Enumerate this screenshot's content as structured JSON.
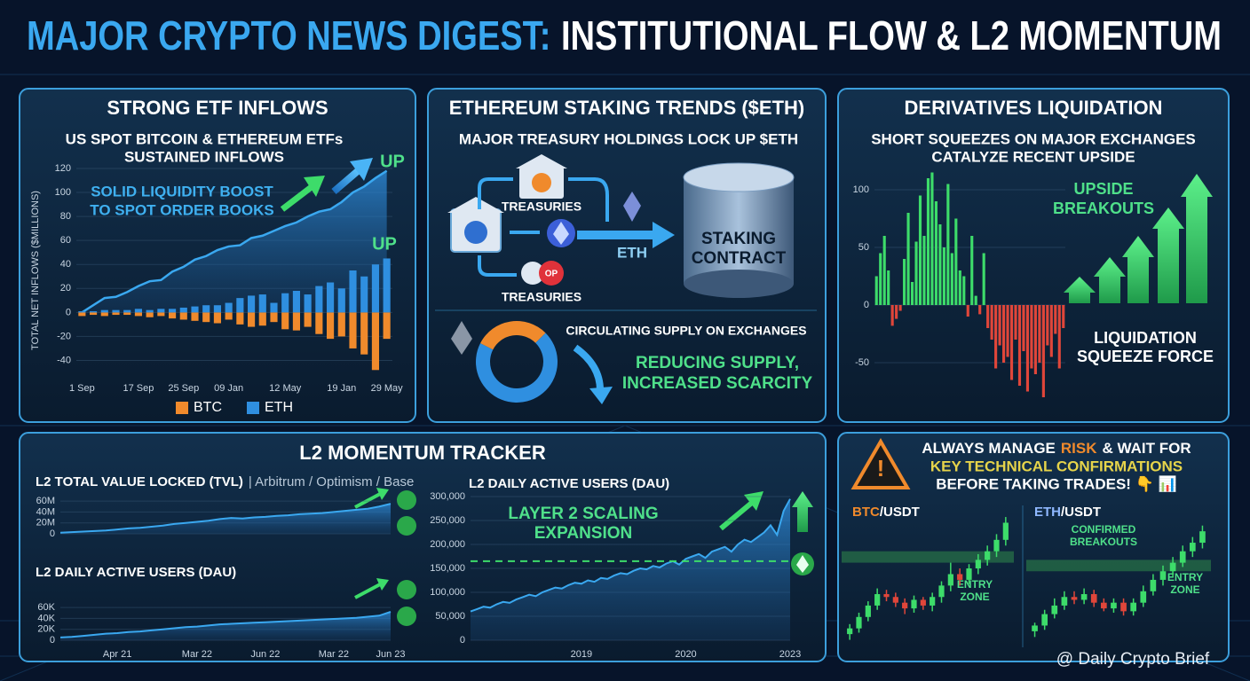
{
  "header": {
    "title_lead": "MAJOR CRYPTO NEWS DIGEST:",
    "title_rest": "INSTITUTIONAL FLOW & L2 MOMENTUM"
  },
  "panels": {
    "etf": {
      "heading": "STRONG ETF INFLOWS",
      "subtitle": [
        "US SPOT BITCOIN & ETHEREUM ETFs",
        "SUSTAINED INFLOWS"
      ],
      "note": [
        "SOLID LIQUIDITY BOOST",
        "TO SPOT ORDER BOOKS"
      ],
      "up": [
        "UP",
        "UP"
      ]
    },
    "staking": {
      "heading": "ETHEREUM STAKING TRENDS ($ETH)",
      "subtitle": "MAJOR TREASURY HOLDINGS LOCK UP $ETH",
      "treasuries": [
        "TREASURIES",
        "TREASURIES"
      ],
      "flow": "ETH",
      "contract": [
        "STAKING",
        "CONTRACT"
      ],
      "op": "OP",
      "supply_note": [
        "REDUCING SUPPLY,",
        "INCREASED SCARCITY"
      ]
    },
    "derivatives": {
      "heading": "DERIVATIVES LIQUIDATION",
      "subtitle": [
        "SHORT SQUEEZES ON MAJOR EXCHANGES",
        "CATALYZE RECENT UPSIDE"
      ],
      "upside": [
        "UPSIDE",
        "BREAKOUTS"
      ],
      "force": [
        "LIQUIDATION",
        "SQUEEZE FORCE"
      ]
    },
    "l2": {
      "heading": "L2 MOMENTUM TRACKER",
      "tvl_title": "L2 TOTAL VALUE LOCKED (TVL)",
      "tvl_networks": "| Arbitrum / Optimism / Base",
      "dau_title": "L2 DAILY ACTIVE USERS (DAU)",
      "dau_big_title": "L2 DAILY ACTIVE USERS (DAU)",
      "expansion": [
        "LAYER 2 SCALING",
        "EXPANSION"
      ]
    },
    "risk": {
      "line1": [
        "ALWAYS MANAGE",
        "RISK",
        "& WAIT FOR"
      ],
      "line2": "KEY TECHNICAL CONFIRMATIONS",
      "line3": "BEFORE TAKING TRADES! 👇 📊",
      "btc_pair": [
        "BTC",
        "/USDT"
      ],
      "eth_pair": [
        "ETH",
        "/USDT"
      ],
      "entry": [
        "ENTRY",
        "ZONE"
      ],
      "confirmed": [
        "CONFIRMED",
        "BREAKOUTS"
      ],
      "entry2": [
        "ENTRY",
        "ZONE"
      ]
    },
    "watermark": "@ Daily Crypto Brief"
  },
  "chart_data": [
    {
      "type": "bar",
      "y_label": "TOTAL NET INFLOWS ($MILLIONS)",
      "categories": [
        "1 Sep",
        null,
        null,
        null,
        null,
        "17 Sep",
        null,
        null,
        null,
        "25 Sep",
        null,
        null,
        null,
        "09 Jan",
        null,
        null,
        null,
        null,
        "12 May",
        null,
        null,
        null,
        null,
        "19 Jan",
        null,
        null,
        null,
        "29 May"
      ],
      "series": [
        {
          "name": "BTC",
          "color": "#f08a2c",
          "values": [
            -3,
            -2,
            -3,
            -2,
            -2,
            -3,
            -4,
            -3,
            -5,
            -6,
            -7,
            -8,
            -9,
            -6,
            -10,
            -12,
            -11,
            -8,
            -14,
            -15,
            -12,
            -18,
            -22,
            -20,
            -30,
            -35,
            -48,
            -22
          ]
        },
        {
          "name": "ETH",
          "color": "#2f8fe0",
          "values": [
            1,
            1,
            2,
            2,
            2,
            3,
            2,
            3,
            3,
            4,
            5,
            6,
            6,
            8,
            12,
            14,
            15,
            8,
            16,
            18,
            15,
            22,
            25,
            20,
            35,
            30,
            40,
            45
          ]
        }
      ],
      "total": [
        0,
        6,
        12,
        13,
        17,
        22,
        26,
        27,
        34,
        38,
        44,
        47,
        52,
        55,
        56,
        62,
        64,
        68,
        72,
        75,
        80,
        84,
        86,
        92,
        100,
        105,
        112,
        118
      ],
      "total_color": "#3aa8f0",
      "ylim": [
        -50,
        120
      ],
      "yticks": [
        -40,
        -20,
        0,
        20,
        40,
        60,
        80,
        100,
        120
      ],
      "grid": true
    },
    {
      "type": "pie",
      "title": "CIRCULATING SUPPLY ON EXCHANGES",
      "values": [
        30,
        70
      ],
      "colors": [
        "#f08a2c",
        "#2f8fe0"
      ]
    },
    {
      "type": "bar",
      "values": [
        25,
        45,
        60,
        30,
        -18,
        -12,
        -5,
        40,
        80,
        20,
        55,
        95,
        60,
        110,
        115,
        90,
        70,
        50,
        105,
        45,
        75,
        30,
        25,
        -10,
        60,
        8,
        -8,
        45,
        -20,
        -30,
        -55,
        -35,
        -50,
        -45,
        -65,
        -30,
        -70,
        -40,
        -75,
        -55,
        -60,
        -50,
        -80,
        -35,
        -45,
        -25,
        -55,
        -20
      ],
      "positive_color": "#3ddc6a",
      "negative_color": "#e0463a",
      "ylim": [
        -85,
        125
      ],
      "yticks": [
        -50,
        0,
        50,
        100
      ],
      "grid": true
    },
    {
      "type": "line",
      "color": "#3aa8f0",
      "values": [
        2000000,
        3000000,
        4000000,
        5000000,
        6000000,
        8000000,
        10000000,
        11000000,
        13000000,
        15000000,
        18000000,
        20000000,
        22000000,
        24000000,
        27000000,
        29000000,
        28000000,
        30000000,
        31000000,
        33000000,
        34000000,
        36000000,
        37000000,
        38000000,
        40000000,
        42000000,
        44000000,
        46000000,
        50000000,
        55000000
      ],
      "ylim": [
        0,
        65000000
      ],
      "yticks": [
        0,
        {
          "value": 20000000,
          "label": "20M"
        },
        {
          "value": 40000000,
          "label": "40M"
        },
        {
          "value": 60000000,
          "label": "60M"
        }
      ],
      "grid": true
    },
    {
      "type": "line",
      "color": "#3aa8f0",
      "categories": [
        null,
        null,
        null,
        null,
        null,
        "Apr 21",
        null,
        null,
        null,
        null,
        null,
        null,
        "Mar 22",
        null,
        null,
        null,
        null,
        null,
        "Jun 22",
        null,
        null,
        null,
        null,
        null,
        "Mar 22",
        null,
        null,
        null,
        null,
        "Jun 23"
      ],
      "values": [
        5000,
        6000,
        8000,
        10000,
        12000,
        13000,
        15000,
        16000,
        18000,
        20000,
        22000,
        24000,
        25000,
        27000,
        29000,
        30000,
        31000,
        32000,
        33000,
        34000,
        35000,
        36000,
        37000,
        38000,
        39000,
        40000,
        41000,
        43000,
        45000,
        52000
      ],
      "ylim": [
        0,
        65000
      ],
      "yticks": [
        0,
        {
          "value": 20000,
          "label": "20K"
        },
        {
          "value": 40000,
          "label": "40K"
        },
        {
          "value": 60000,
          "label": "60K"
        }
      ],
      "grid": true
    },
    {
      "type": "line",
      "color": "#3aa8f0",
      "categories": [
        null,
        null,
        null,
        null,
        null,
        null,
        null,
        null,
        null,
        null,
        null,
        null,
        null,
        null,
        null,
        null,
        null,
        "2019",
        null,
        null,
        null,
        null,
        null,
        null,
        null,
        null,
        null,
        null,
        null,
        null,
        null,
        null,
        null,
        "2020",
        null,
        null,
        null,
        null,
        null,
        null,
        null,
        null,
        null,
        null,
        null,
        null,
        null,
        null,
        null,
        "2023"
      ],
      "values": [
        60000,
        65000,
        70000,
        68000,
        75000,
        80000,
        78000,
        85000,
        90000,
        95000,
        92000,
        100000,
        105000,
        110000,
        108000,
        115000,
        120000,
        118000,
        125000,
        122000,
        130000,
        128000,
        135000,
        140000,
        138000,
        145000,
        150000,
        148000,
        155000,
        152000,
        160000,
        165000,
        158000,
        170000,
        175000,
        180000,
        172000,
        185000,
        190000,
        195000,
        185000,
        200000,
        210000,
        205000,
        215000,
        225000,
        240000,
        220000,
        270000,
        295000
      ],
      "reference_line": 165000,
      "reference_color": "#3ddc6a",
      "ylim": [
        0,
        300000
      ],
      "yticks": [
        0,
        {
          "value": 50000,
          "label": "50,000"
        },
        {
          "value": 100000,
          "label": "100,000"
        },
        {
          "value": 150000,
          "label": "150,000"
        },
        {
          "value": 200000,
          "label": "200,000"
        },
        {
          "value": 250000,
          "label": "250,000"
        },
        {
          "value": 300000,
          "label": "300,000"
        }
      ],
      "grid": true
    },
    {
      "type": "candlestick",
      "up_color": "#3ddc6a",
      "down_color": "#e0463a",
      "open": [
        8,
        12,
        20,
        28,
        36,
        34,
        30,
        26,
        32,
        28,
        34,
        42,
        50,
        46,
        54,
        60,
        66,
        74
      ],
      "high": [
        15,
        23,
        31,
        40,
        39,
        37,
        33,
        35,
        34,
        37,
        45,
        58,
        54,
        57,
        64,
        70,
        78,
        90
      ],
      "low": [
        4,
        9,
        17,
        25,
        31,
        27,
        22,
        23,
        25,
        24,
        30,
        38,
        42,
        43,
        50,
        56,
        62,
        70
      ],
      "close": [
        12,
        20,
        28,
        36,
        34,
        30,
        26,
        32,
        28,
        34,
        42,
        50,
        46,
        54,
        60,
        66,
        74,
        86
      ],
      "entry_zone": [
        58,
        66
      ],
      "ylim": [
        0,
        95
      ]
    },
    {
      "type": "candlestick",
      "up_color": "#3ddc6a",
      "down_color": "#e0463a",
      "open": [
        10,
        14,
        22,
        28,
        34,
        32,
        36,
        30,
        26,
        30,
        24,
        30,
        38,
        46,
        52,
        58,
        66,
        72
      ],
      "high": [
        16,
        25,
        33,
        38,
        38,
        40,
        39,
        33,
        33,
        33,
        33,
        42,
        50,
        56,
        62,
        70,
        76,
        84
      ],
      "low": [
        6,
        11,
        19,
        25,
        29,
        29,
        27,
        24,
        23,
        21,
        21,
        27,
        35,
        42,
        48,
        55,
        62,
        68
      ],
      "close": [
        14,
        22,
        28,
        34,
        32,
        36,
        30,
        26,
        30,
        24,
        30,
        38,
        46,
        52,
        58,
        66,
        72,
        80
      ],
      "entry_zone": [
        52,
        60
      ],
      "ylim": [
        0,
        95
      ]
    }
  ]
}
